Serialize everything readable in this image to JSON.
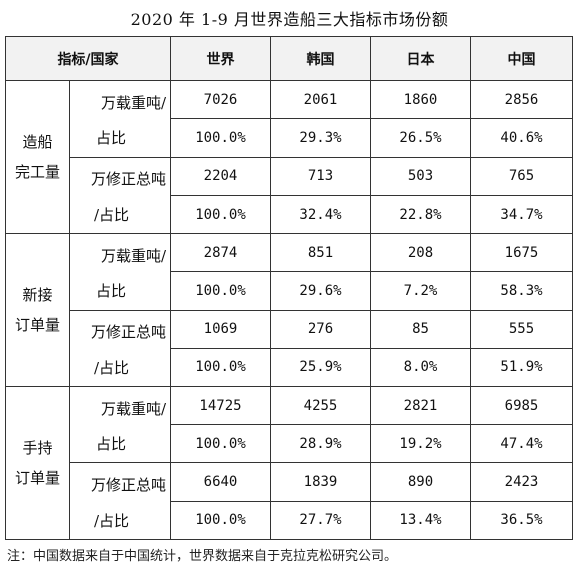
{
  "title": "2020 年 1-9 月世界造船三大指标市场份额",
  "headers": [
    "指标/国家",
    "世界",
    "韩国",
    "日本",
    "中国"
  ],
  "groups": [
    {
      "label_line1": "造船",
      "label_line2": "完工量",
      "rows": [
        {
          "unit": "万载重吨/",
          "values": [
            "7026",
            "2061",
            "1860",
            "2856"
          ]
        },
        {
          "unit": "占比",
          "values": [
            "100.0%",
            "29.3%",
            "26.5%",
            "40.6%"
          ]
        },
        {
          "unit": "万修正总吨",
          "values": [
            "2204",
            "713",
            "503",
            "765"
          ]
        },
        {
          "unit": "/占比",
          "values": [
            "100.0%",
            "32.4%",
            "22.8%",
            "34.7%"
          ]
        }
      ]
    },
    {
      "label_line1": "新接",
      "label_line2": "订单量",
      "rows": [
        {
          "unit": "万载重吨/",
          "values": [
            "2874",
            "851",
            "208",
            "1675"
          ]
        },
        {
          "unit": "占比",
          "values": [
            "100.0%",
            "29.6%",
            "7.2%",
            "58.3%"
          ]
        },
        {
          "unit": "万修正总吨",
          "values": [
            "1069",
            "276",
            "85",
            "555"
          ]
        },
        {
          "unit": "/占比",
          "values": [
            "100.0%",
            "25.9%",
            "8.0%",
            "51.9%"
          ]
        }
      ]
    },
    {
      "label_line1": "手持",
      "label_line2": "订单量",
      "rows": [
        {
          "unit": "万载重吨/",
          "values": [
            "14725",
            "4255",
            "2821",
            "6985"
          ]
        },
        {
          "unit": "占比",
          "values": [
            "100.0%",
            "28.9%",
            "19.2%",
            "47.4%"
          ]
        },
        {
          "unit": "万修正总吨",
          "values": [
            "6640",
            "1839",
            "890",
            "2423"
          ]
        },
        {
          "unit": "/占比",
          "values": [
            "100.0%",
            "27.7%",
            "13.4%",
            "36.5%"
          ]
        }
      ]
    }
  ],
  "note": "注：中国数据来自于中国统计，世界数据来自于克拉克松研究公司。"
}
